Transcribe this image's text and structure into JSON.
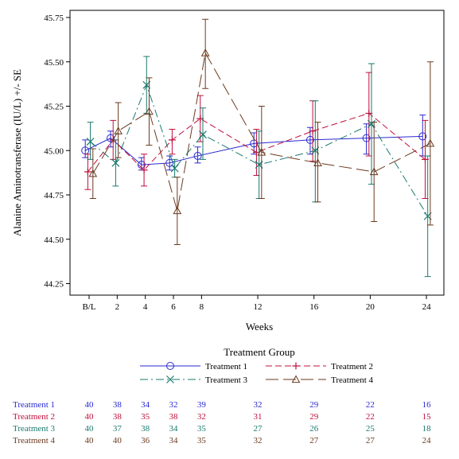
{
  "chart_data": {
    "type": "line",
    "xlabel": "Weeks",
    "ylabel": "Alanine Aminotransferase (IU/L) +/- SE",
    "ylim": [
      44.25,
      45.75
    ],
    "yticks": [
      "44.25",
      "44.50",
      "44.75",
      "45.00",
      "45.25",
      "45.50",
      "45.75"
    ],
    "xtick_labels": [
      "B/L",
      "2",
      "4",
      "6",
      "8",
      "12",
      "16",
      "20",
      "24"
    ],
    "xtick_values": [
      0,
      2,
      4,
      6,
      8,
      12,
      16,
      20,
      24
    ],
    "legend_title": "Treatment Group",
    "series": [
      {
        "name": "Treatment 1",
        "color": "#2a2ad0",
        "marker": "circle",
        "dash": "solid",
        "x": [
          0,
          1.8,
          4,
          6,
          8,
          12,
          16,
          20,
          24
        ],
        "y": [
          45.0,
          45.07,
          44.92,
          44.93,
          44.97,
          45.04,
          45.06,
          45.07,
          45.08
        ],
        "lo": [
          44.96,
          45.02,
          44.89,
          44.89,
          44.93,
          44.98,
          44.98,
          44.98,
          44.97
        ],
        "hi": [
          45.06,
          45.11,
          44.96,
          44.97,
          45.02,
          45.1,
          45.13,
          45.15,
          45.2
        ]
      },
      {
        "name": "Treatment 2",
        "color": "#c0103c",
        "marker": "plus",
        "dash": "dashed",
        "x": [
          0,
          1.8,
          4,
          6,
          8,
          12,
          16,
          20,
          24
        ],
        "y": [
          44.88,
          45.06,
          44.89,
          45.06,
          45.18,
          44.99,
          45.11,
          45.21,
          44.95
        ],
        "lo": [
          44.78,
          44.95,
          44.8,
          44.98,
          45.05,
          44.86,
          44.94,
          44.97,
          44.73
        ],
        "hi": [
          44.98,
          45.17,
          44.98,
          45.12,
          45.31,
          45.12,
          45.28,
          45.44,
          45.17
        ]
      },
      {
        "name": "Treatment 3",
        "color": "#1a7a6e",
        "marker": "x",
        "dash": "dashdot",
        "x": [
          0,
          1.8,
          4,
          6,
          8,
          12,
          16,
          20,
          24
        ],
        "y": [
          45.05,
          44.93,
          45.37,
          44.9,
          45.09,
          44.92,
          45.0,
          45.15,
          44.63
        ],
        "lo": [
          44.95,
          44.8,
          45.21,
          44.85,
          44.95,
          44.73,
          44.71,
          44.81,
          44.29
        ],
        "hi": [
          45.16,
          45.06,
          45.53,
          44.95,
          45.24,
          45.11,
          45.28,
          45.49,
          44.97
        ]
      },
      {
        "name": "Treatment 4",
        "color": "#6b3a1f",
        "marker": "triangle",
        "dash": "longdash",
        "x": [
          0,
          1.8,
          4,
          6,
          8,
          12,
          16,
          20,
          24
        ],
        "y": [
          44.87,
          45.11,
          45.22,
          44.66,
          45.55,
          44.99,
          44.93,
          44.88,
          45.04
        ],
        "lo": [
          44.73,
          44.96,
          45.03,
          44.47,
          45.35,
          44.73,
          44.71,
          44.6,
          44.58
        ],
        "hi": [
          45.01,
          45.27,
          45.41,
          44.85,
          45.74,
          45.25,
          45.16,
          45.16,
          45.5
        ]
      }
    ],
    "counts_table": {
      "x": [
        0,
        2,
        4,
        6,
        8,
        12,
        16,
        20,
        24
      ],
      "rows": [
        {
          "label": "Treatment 1",
          "color": "#2a2ad0",
          "values": [
            "40",
            "38",
            "34",
            "32",
            "39",
            "32",
            "29",
            "22",
            "16"
          ]
        },
        {
          "label": "Treatment 2",
          "color": "#c0103c",
          "values": [
            "40",
            "38",
            "35",
            "38",
            "32",
            "31",
            "29",
            "22",
            "15"
          ]
        },
        {
          "label": "Treatment 3",
          "color": "#1a7a6e",
          "values": [
            "40",
            "37",
            "38",
            "34",
            "35",
            "27",
            "26",
            "25",
            "18"
          ]
        },
        {
          "label": "Treatment 4",
          "color": "#6b3a1f",
          "values": [
            "40",
            "40",
            "36",
            "34",
            "35",
            "32",
            "27",
            "27",
            "24"
          ]
        }
      ]
    }
  }
}
